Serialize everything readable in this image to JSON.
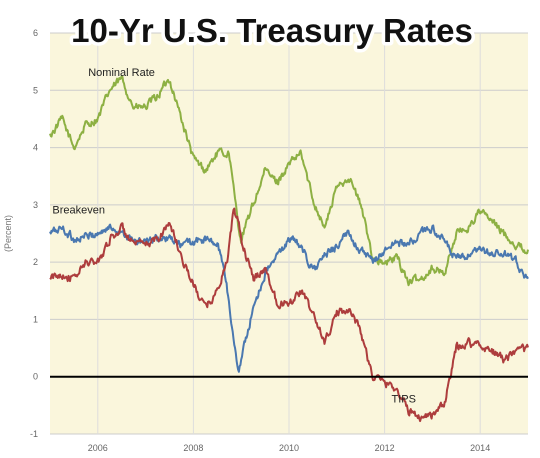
{
  "chart_data": {
    "type": "line",
    "title": "10-Yr U.S. Treasury Rates",
    "ylabel": "(Percent)",
    "xlabel": "",
    "xlim": [
      2005.0,
      2015.0
    ],
    "ylim": [
      -1,
      6
    ],
    "x_ticks": [
      "2006",
      "2008",
      "2010",
      "2012",
      "2014"
    ],
    "y_ticks": [
      "-1",
      "0",
      "1",
      "2",
      "3",
      "4",
      "5",
      "6"
    ],
    "grid": true,
    "background_color": "#faf6dc",
    "series": [
      {
        "name": "Nominal Rate",
        "color": "#8db043",
        "x": [
          2005.0,
          2005.25,
          2005.5,
          2005.75,
          2006.0,
          2006.25,
          2006.5,
          2006.75,
          2007.0,
          2007.25,
          2007.5,
          2007.75,
          2008.0,
          2008.25,
          2008.5,
          2008.75,
          2008.85,
          2008.95,
          2009.0,
          2009.25,
          2009.5,
          2009.75,
          2010.0,
          2010.25,
          2010.5,
          2010.75,
          2011.0,
          2011.25,
          2011.5,
          2011.75,
          2012.0,
          2012.25,
          2012.5,
          2012.75,
          2013.0,
          2013.25,
          2013.5,
          2013.75,
          2014.0,
          2014.25,
          2014.5,
          2014.75,
          2015.0
        ],
        "values": [
          4.2,
          4.5,
          4.0,
          4.4,
          4.5,
          5.0,
          5.2,
          4.7,
          4.7,
          4.9,
          5.2,
          4.5,
          3.8,
          3.6,
          3.9,
          3.9,
          3.2,
          2.6,
          2.4,
          3.0,
          3.6,
          3.4,
          3.7,
          3.9,
          3.1,
          2.6,
          3.3,
          3.5,
          3.0,
          2.1,
          1.95,
          2.1,
          1.65,
          1.7,
          1.9,
          1.8,
          2.5,
          2.6,
          2.9,
          2.7,
          2.5,
          2.3,
          2.2
        ]
      },
      {
        "name": "Breakeven",
        "color": "#4a78b0",
        "x": [
          2005.0,
          2005.25,
          2005.5,
          2005.75,
          2006.0,
          2006.25,
          2006.5,
          2006.75,
          2007.0,
          2007.25,
          2007.5,
          2007.75,
          2008.0,
          2008.25,
          2008.5,
          2008.65,
          2008.8,
          2008.9,
          2008.95,
          2009.0,
          2009.25,
          2009.5,
          2009.75,
          2010.0,
          2010.25,
          2010.5,
          2010.75,
          2011.0,
          2011.25,
          2011.5,
          2011.75,
          2012.0,
          2012.25,
          2012.5,
          2012.75,
          2013.0,
          2013.25,
          2013.5,
          2013.75,
          2014.0,
          2014.25,
          2014.5,
          2014.75,
          2015.0
        ],
        "values": [
          2.5,
          2.6,
          2.4,
          2.45,
          2.5,
          2.6,
          2.55,
          2.35,
          2.35,
          2.4,
          2.4,
          2.3,
          2.35,
          2.4,
          2.3,
          1.9,
          0.9,
          0.3,
          0.15,
          0.3,
          1.2,
          1.8,
          2.1,
          2.4,
          2.3,
          1.85,
          2.1,
          2.3,
          2.5,
          2.2,
          2.0,
          2.2,
          2.35,
          2.3,
          2.5,
          2.6,
          2.35,
          2.05,
          2.1,
          2.2,
          2.15,
          2.15,
          2.0,
          1.7
        ]
      },
      {
        "name": "TIPS",
        "color": "#ad3d3d",
        "x": [
          2005.0,
          2005.25,
          2005.5,
          2005.75,
          2006.0,
          2006.25,
          2006.5,
          2006.75,
          2007.0,
          2007.25,
          2007.5,
          2007.75,
          2008.0,
          2008.25,
          2008.5,
          2008.7,
          2008.85,
          2008.95,
          2009.0,
          2009.25,
          2009.5,
          2009.75,
          2010.0,
          2010.25,
          2010.5,
          2010.75,
          2011.0,
          2011.25,
          2011.5,
          2011.75,
          2012.0,
          2012.25,
          2012.5,
          2012.75,
          2013.0,
          2013.25,
          2013.4,
          2013.5,
          2013.75,
          2014.0,
          2014.25,
          2014.5,
          2014.75,
          2015.0
        ],
        "values": [
          1.7,
          1.8,
          1.7,
          2.0,
          2.0,
          2.4,
          2.6,
          2.3,
          2.3,
          2.4,
          2.7,
          2.1,
          1.6,
          1.2,
          1.5,
          2.0,
          2.9,
          2.7,
          2.4,
          1.7,
          1.9,
          1.3,
          1.3,
          1.5,
          1.1,
          0.6,
          1.1,
          1.2,
          0.8,
          0.0,
          -0.1,
          -0.2,
          -0.6,
          -0.7,
          -0.65,
          -0.5,
          0.1,
          0.5,
          0.6,
          0.55,
          0.45,
          0.3,
          0.4,
          0.5
        ]
      }
    ]
  }
}
